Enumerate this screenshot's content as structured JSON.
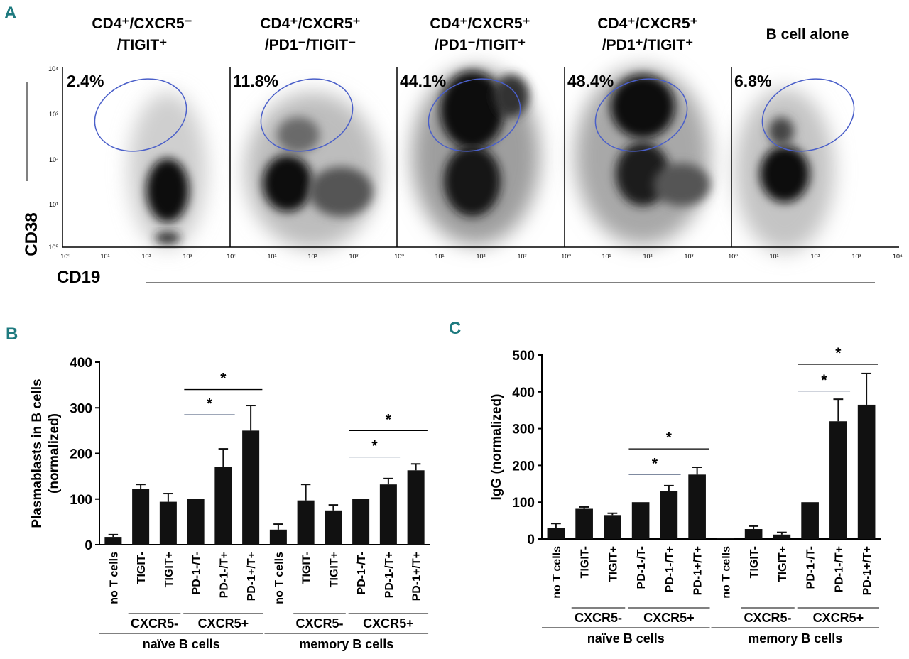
{
  "panel_labels": {
    "a": "A",
    "b": "B",
    "c": "C"
  },
  "flow": {
    "ylabel": "CD38",
    "xlabel": "CD19",
    "y_ticks": [
      "10⁰",
      "10¹",
      "10²",
      "10³",
      "10⁴"
    ],
    "x_ticks": [
      "10⁰",
      "10¹",
      "10²",
      "10³",
      "10⁴"
    ],
    "panels": [
      {
        "title_line1": "CD4⁺/CXCR5⁻",
        "title_line2": "/TIGIT⁺",
        "percent": "2.4%"
      },
      {
        "title_line1": "CD4⁺/CXCR5⁺",
        "title_line2": "/PD1⁻/TIGIT⁻",
        "percent": "11.8%"
      },
      {
        "title_line1": "CD4⁺/CXCR5⁺",
        "title_line2": "/PD1⁻/TIGIT⁺",
        "percent": "44.1%"
      },
      {
        "title_line1": "CD4⁺/CXCR5⁺",
        "title_line2": "/PD1⁺/TIGIT⁺",
        "percent": "48.4%"
      },
      {
        "title_line1": "B cell alone",
        "title_line2": "",
        "percent": "6.8%"
      }
    ]
  },
  "chart_data": [
    {
      "type": "bar",
      "title": "",
      "ylabel_line1": "Plasmablasts in  B cells",
      "ylabel_line2": "(normalized)",
      "ylim": [
        0,
        400
      ],
      "yticks": [
        0,
        100,
        200,
        300,
        400
      ],
      "categories": [
        "no T cells",
        "TIGIT-",
        "TIGIT+",
        "PD-1-/T-",
        "PD-1-/T+",
        "PD-1+/T+",
        "no T cells",
        "TIGIT-",
        "TIGIT+",
        "PD-1-/T-",
        "PD-1-/T+",
        "PD-1+/T+"
      ],
      "values": [
        17,
        122,
        94,
        100,
        170,
        250,
        33,
        97,
        75,
        100,
        132,
        163
      ],
      "errors": [
        5,
        10,
        18,
        0,
        40,
        55,
        12,
        35,
        12,
        0,
        13,
        14
      ],
      "groups_level1": [
        {
          "label": "CXCR5-",
          "span": [
            1,
            2
          ]
        },
        {
          "label": "CXCR5+",
          "span": [
            3,
            5
          ]
        },
        {
          "label": "CXCR5-",
          "span": [
            7,
            8
          ]
        },
        {
          "label": "CXCR5+",
          "span": [
            9,
            11
          ]
        }
      ],
      "groups_level2": [
        {
          "label": "naïve B cells",
          "span": [
            0,
            5
          ]
        },
        {
          "label": "memory B cells",
          "span": [
            6,
            11
          ]
        }
      ],
      "significance": [
        {
          "from": 3,
          "to": 4,
          "y": 285,
          "label": "*"
        },
        {
          "from": 3,
          "to": 5,
          "y": 340,
          "label": "*"
        },
        {
          "from": 9,
          "to": 10,
          "y": 192,
          "label": "*"
        },
        {
          "from": 9,
          "to": 11,
          "y": 250,
          "label": "*"
        }
      ]
    },
    {
      "type": "bar",
      "title": "",
      "ylabel_line1": "IgG (normalized)",
      "ylabel_line2": "",
      "ylim": [
        0,
        500
      ],
      "yticks": [
        0,
        100,
        200,
        300,
        400,
        500
      ],
      "categories": [
        "no T cells",
        "TIGIT-",
        "TIGIT+",
        "PD-1-/T-",
        "PD-1-/T+",
        "PD-1+/T+",
        "no T cells",
        "TIGIT-",
        "TIGIT+",
        "PD-1-/T-",
        "PD-1-/T+",
        "PD-1+/T+"
      ],
      "values": [
        30,
        82,
        65,
        100,
        130,
        175,
        2,
        27,
        12,
        100,
        320,
        365
      ],
      "errors": [
        12,
        5,
        5,
        0,
        15,
        20,
        0,
        8,
        6,
        0,
        60,
        85
      ],
      "groups_level1": [
        {
          "label": "CXCR5-",
          "span": [
            1,
            2
          ]
        },
        {
          "label": "CXCR5+",
          "span": [
            3,
            5
          ]
        },
        {
          "label": "CXCR5-",
          "span": [
            7,
            8
          ]
        },
        {
          "label": "CXCR5+",
          "span": [
            9,
            11
          ]
        }
      ],
      "groups_level2": [
        {
          "label": "naïve B cells",
          "span": [
            0,
            5
          ]
        },
        {
          "label": "memory B cells",
          "span": [
            6,
            11
          ]
        }
      ],
      "significance": [
        {
          "from": 3,
          "to": 4,
          "y": 175,
          "label": "*"
        },
        {
          "from": 3,
          "to": 5,
          "y": 245,
          "label": "*"
        },
        {
          "from": 9,
          "to": 10,
          "y": 402,
          "label": "*"
        },
        {
          "from": 9,
          "to": 11,
          "y": 475,
          "label": "*"
        }
      ]
    }
  ],
  "colors": {
    "bar": "#111111",
    "gate": "#4a5fc9",
    "line": "#000000",
    "sig_line_light": "#7f8aa0",
    "panel_label": "#1e7a7f"
  }
}
